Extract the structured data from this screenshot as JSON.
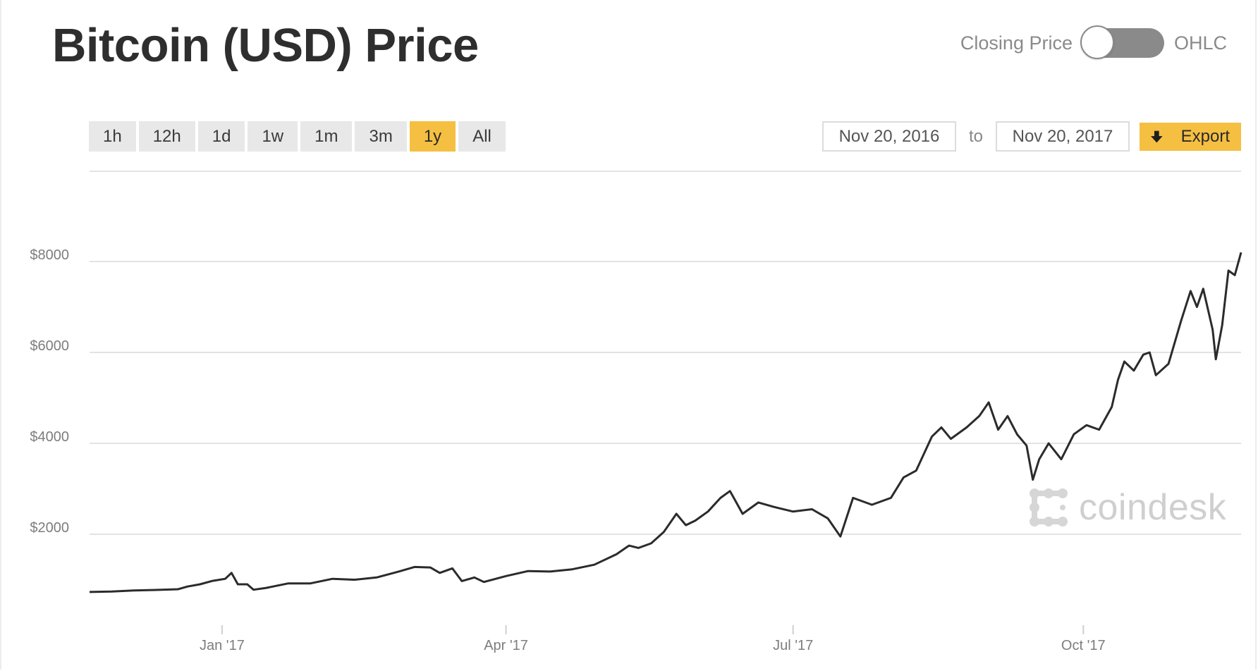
{
  "header": {
    "title": "Bitcoin (USD) Price",
    "toggle_left": "Closing Price",
    "toggle_right": "OHLC"
  },
  "ranges": [
    "1h",
    "12h",
    "1d",
    "1w",
    "1m",
    "3m",
    "1y",
    "All"
  ],
  "active_range": "1y",
  "date_range": {
    "from": "Nov 20, 2016",
    "to_label": "to",
    "to": "Nov 20, 2017"
  },
  "export_label": "Export",
  "icons": {
    "export": "download-arrow-icon",
    "watermark": "coindesk-logo-icon"
  },
  "watermark_text": "coindesk",
  "colors": {
    "accent": "#f5bf42",
    "line": "#2b2b2b",
    "grid": "#e3e3e3",
    "toggle": "#8a8a8a"
  },
  "chart_data": {
    "type": "line",
    "title": "Bitcoin (USD) Price",
    "xlabel": "",
    "ylabel": "",
    "x_ticks": [
      {
        "label": "Jan '17",
        "date": "2017-01-01"
      },
      {
        "label": "Apr '17",
        "date": "2017-04-01"
      },
      {
        "label": "Jul '17",
        "date": "2017-07-01"
      },
      {
        "label": "Oct '17",
        "date": "2017-10-01"
      }
    ],
    "y_ticks": [
      {
        "label": "$2000",
        "value": 2000
      },
      {
        "label": "$4000",
        "value": 4000
      },
      {
        "label": "$6000",
        "value": 6000
      },
      {
        "label": "$8000",
        "value": 8000
      }
    ],
    "xlim": [
      "2016-11-20",
      "2017-11-20"
    ],
    "ylim": [
      0,
      10000
    ],
    "grid": true,
    "series": [
      {
        "values": [
          [
            "2016-11-20",
            730
          ],
          [
            "2016-11-27",
            740
          ],
          [
            "2016-12-04",
            765
          ],
          [
            "2016-12-11",
            775
          ],
          [
            "2016-12-18",
            790
          ],
          [
            "2016-12-21",
            850
          ],
          [
            "2016-12-25",
            900
          ],
          [
            "2016-12-29",
            975
          ],
          [
            "2017-01-02",
            1020
          ],
          [
            "2017-01-04",
            1150
          ],
          [
            "2017-01-06",
            900
          ],
          [
            "2017-01-09",
            900
          ],
          [
            "2017-01-11",
            780
          ],
          [
            "2017-01-15",
            820
          ],
          [
            "2017-01-22",
            920
          ],
          [
            "2017-01-29",
            920
          ],
          [
            "2017-02-05",
            1020
          ],
          [
            "2017-02-12",
            1000
          ],
          [
            "2017-02-19",
            1050
          ],
          [
            "2017-02-26",
            1180
          ],
          [
            "2017-03-03",
            1280
          ],
          [
            "2017-03-08",
            1270
          ],
          [
            "2017-03-11",
            1150
          ],
          [
            "2017-03-15",
            1250
          ],
          [
            "2017-03-18",
            970
          ],
          [
            "2017-03-22",
            1050
          ],
          [
            "2017-03-25",
            950
          ],
          [
            "2017-04-01",
            1080
          ],
          [
            "2017-04-08",
            1190
          ],
          [
            "2017-04-15",
            1180
          ],
          [
            "2017-04-22",
            1230
          ],
          [
            "2017-04-29",
            1330
          ],
          [
            "2017-05-06",
            1560
          ],
          [
            "2017-05-10",
            1750
          ],
          [
            "2017-05-13",
            1700
          ],
          [
            "2017-05-17",
            1800
          ],
          [
            "2017-05-21",
            2050
          ],
          [
            "2017-05-25",
            2450
          ],
          [
            "2017-05-28",
            2200
          ],
          [
            "2017-05-31",
            2300
          ],
          [
            "2017-06-04",
            2500
          ],
          [
            "2017-06-08",
            2800
          ],
          [
            "2017-06-11",
            2950
          ],
          [
            "2017-06-13",
            2700
          ],
          [
            "2017-06-15",
            2450
          ],
          [
            "2017-06-20",
            2700
          ],
          [
            "2017-06-25",
            2600
          ],
          [
            "2017-07-01",
            2500
          ],
          [
            "2017-07-07",
            2550
          ],
          [
            "2017-07-12",
            2350
          ],
          [
            "2017-07-16",
            1950
          ],
          [
            "2017-07-20",
            2800
          ],
          [
            "2017-07-26",
            2650
          ],
          [
            "2017-08-01",
            2800
          ],
          [
            "2017-08-05",
            3250
          ],
          [
            "2017-08-09",
            3400
          ],
          [
            "2017-08-14",
            4150
          ],
          [
            "2017-08-17",
            4350
          ],
          [
            "2017-08-20",
            4100
          ],
          [
            "2017-08-25",
            4350
          ],
          [
            "2017-08-29",
            4600
          ],
          [
            "2017-09-01",
            4900
          ],
          [
            "2017-09-04",
            4300
          ],
          [
            "2017-09-07",
            4600
          ],
          [
            "2017-09-10",
            4200
          ],
          [
            "2017-09-13",
            3950
          ],
          [
            "2017-09-15",
            3200
          ],
          [
            "2017-09-17",
            3650
          ],
          [
            "2017-09-20",
            4000
          ],
          [
            "2017-09-24",
            3650
          ],
          [
            "2017-09-28",
            4200
          ],
          [
            "2017-10-02",
            4400
          ],
          [
            "2017-10-06",
            4300
          ],
          [
            "2017-10-10",
            4800
          ],
          [
            "2017-10-12",
            5400
          ],
          [
            "2017-10-14",
            5800
          ],
          [
            "2017-10-17",
            5600
          ],
          [
            "2017-10-20",
            5950
          ],
          [
            "2017-10-22",
            6000
          ],
          [
            "2017-10-24",
            5500
          ],
          [
            "2017-10-28",
            5750
          ],
          [
            "2017-11-01",
            6700
          ],
          [
            "2017-11-04",
            7350
          ],
          [
            "2017-11-06",
            7000
          ],
          [
            "2017-11-08",
            7400
          ],
          [
            "2017-11-11",
            6500
          ],
          [
            "2017-11-12",
            5850
          ],
          [
            "2017-11-14",
            6600
          ],
          [
            "2017-11-16",
            7800
          ],
          [
            "2017-11-18",
            7700
          ],
          [
            "2017-11-20",
            8200
          ]
        ]
      }
    ]
  }
}
